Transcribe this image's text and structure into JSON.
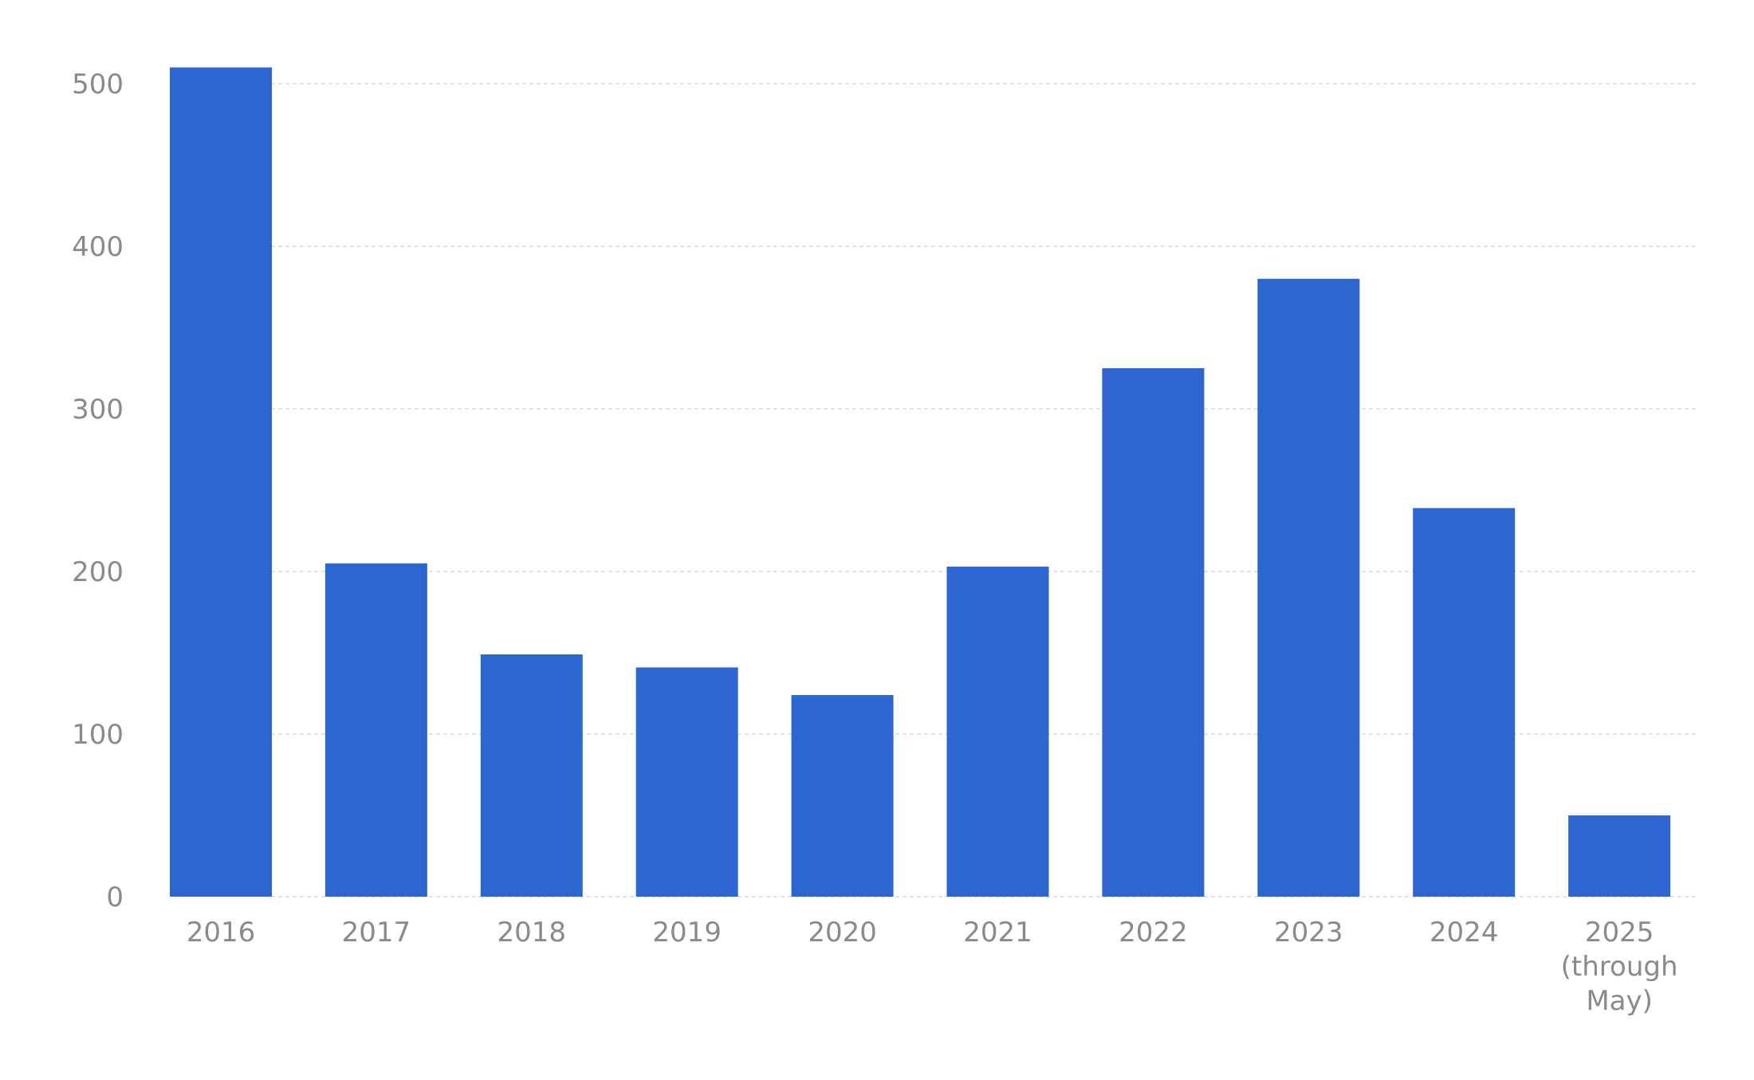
{
  "chart_data": {
    "type": "bar",
    "categories": [
      "2016",
      "2017",
      "2018",
      "2019",
      "2020",
      "2021",
      "2022",
      "2023",
      "2024",
      "2025\n(through\nMay)"
    ],
    "values": [
      510,
      205,
      149,
      141,
      124,
      203,
      325,
      380,
      239,
      50
    ],
    "title": "",
    "xlabel": "",
    "ylabel": "",
    "ylim": [
      0,
      500
    ],
    "yticks": [
      0,
      100,
      200,
      300,
      400,
      500
    ],
    "grid": true,
    "legend": "none",
    "bar_color": "#2d66d1"
  }
}
